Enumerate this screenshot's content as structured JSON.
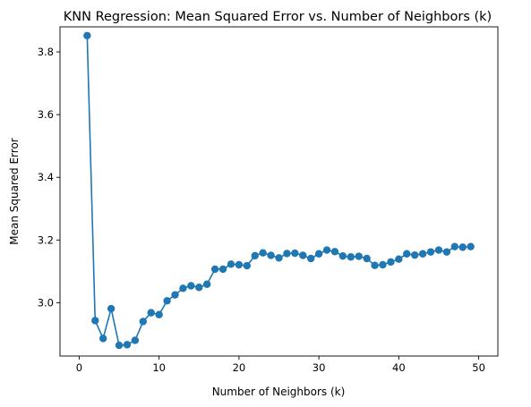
{
  "chart_data": {
    "type": "line",
    "title": "KNN Regression: Mean Squared Error vs. Number of Neighbors (k)",
    "xlabel": "Number of Neighbors (k)",
    "ylabel": "Mean Squared Error",
    "xlim": [
      -2.4,
      52.4
    ],
    "ylim": [
      2.83,
      3.88
    ],
    "xticks": [
      0,
      10,
      20,
      30,
      40,
      50
    ],
    "yticks": [
      3.0,
      3.2,
      3.4,
      3.6,
      3.8
    ],
    "ytick_labels": [
      "3.0",
      "3.2",
      "3.4",
      "3.6",
      "3.8"
    ],
    "grid": false,
    "marker": "circle",
    "color": "#1f77b4",
    "series": [
      {
        "x": [
          1,
          2,
          3,
          4,
          5,
          6,
          7,
          8,
          9,
          10,
          11,
          12,
          13,
          14,
          15,
          16,
          17,
          18,
          19,
          20,
          21,
          22,
          23,
          24,
          25,
          26,
          27,
          28,
          29,
          30,
          31,
          32,
          33,
          34,
          35,
          36,
          37,
          38,
          39,
          40,
          41,
          42,
          43,
          44,
          45,
          46,
          47,
          48,
          49
        ],
        "values": [
          3.852,
          2.943,
          2.886,
          2.981,
          2.864,
          2.866,
          2.88,
          2.94,
          2.968,
          2.962,
          3.006,
          3.025,
          3.046,
          3.054,
          3.049,
          3.059,
          3.107,
          3.107,
          3.123,
          3.121,
          3.118,
          3.15,
          3.159,
          3.151,
          3.143,
          3.157,
          3.158,
          3.151,
          3.141,
          3.156,
          3.168,
          3.163,
          3.149,
          3.146,
          3.148,
          3.141,
          3.119,
          3.121,
          3.13,
          3.139,
          3.156,
          3.152,
          3.156,
          3.162,
          3.168,
          3.162,
          3.179,
          3.177,
          3.179
        ]
      }
    ]
  }
}
